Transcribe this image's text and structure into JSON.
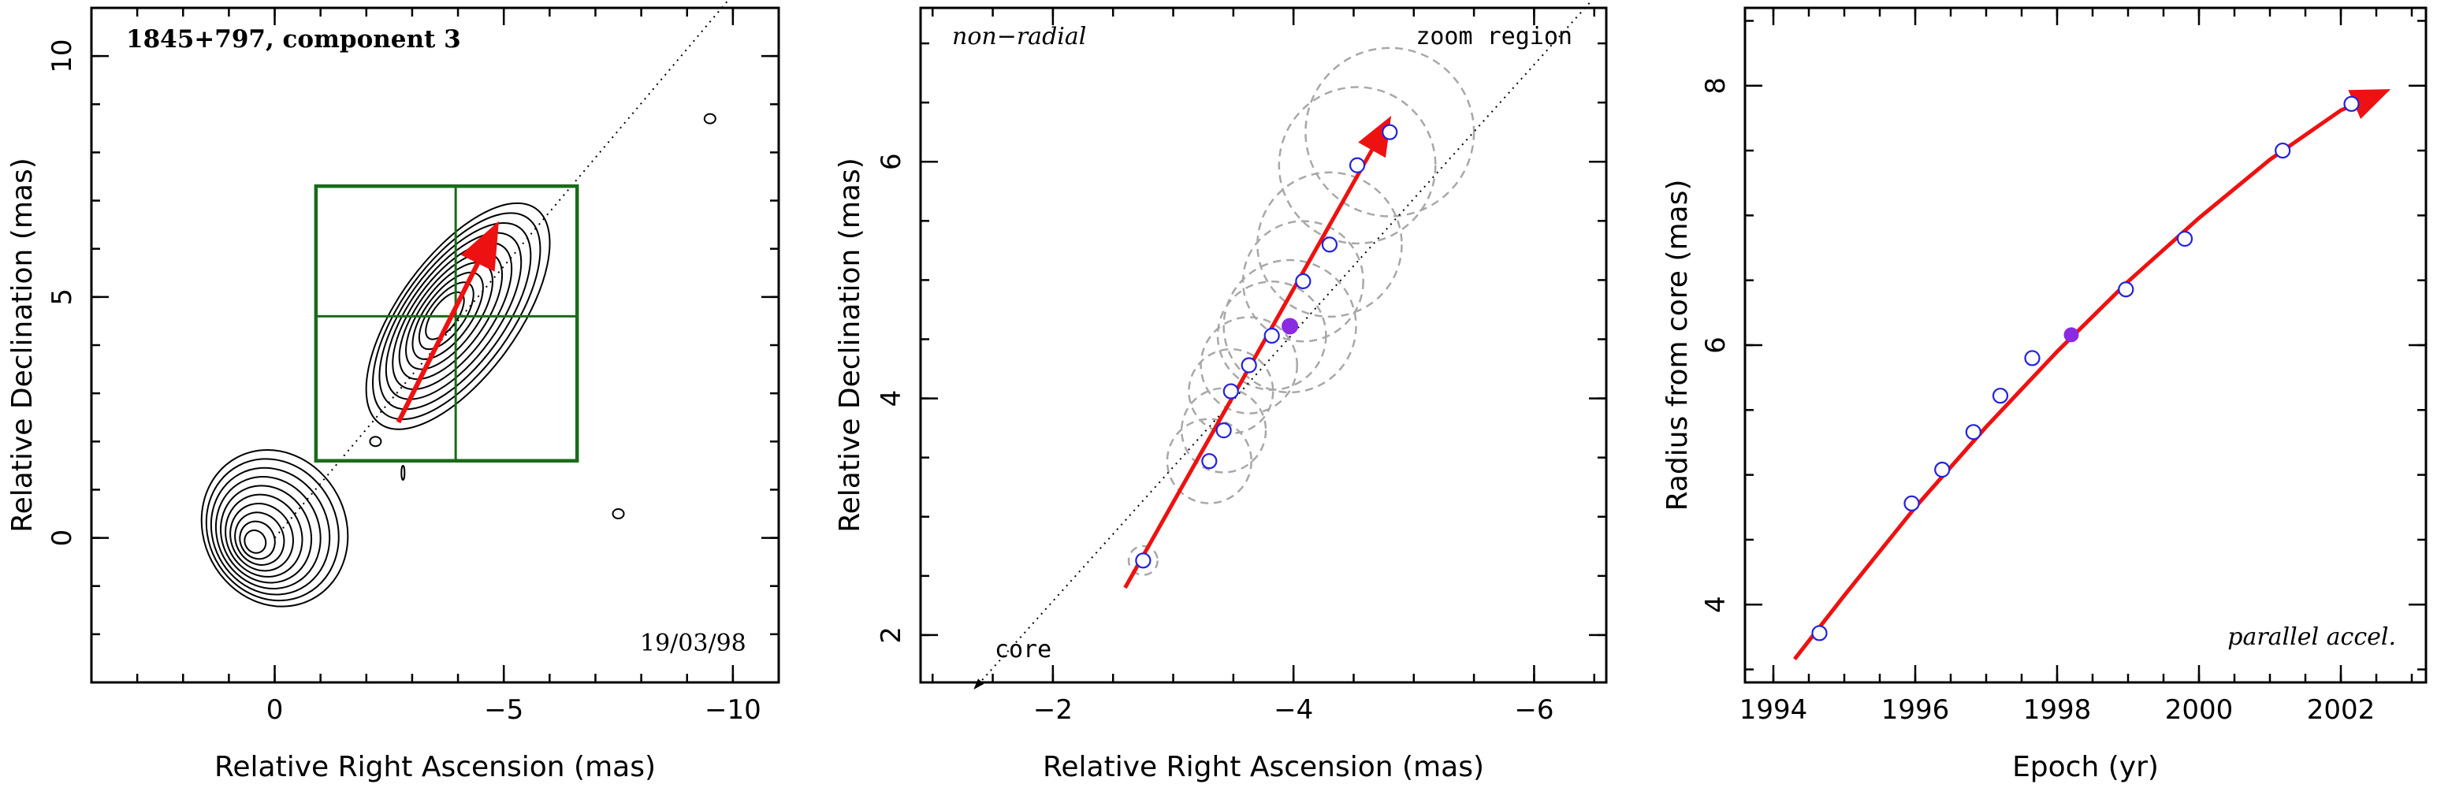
{
  "figure": {
    "colors": {
      "red": "#ee1111",
      "green": "#1a6b1a",
      "blue": "#2222dd",
      "purple": "#8a2be2",
      "gray": "#a8a8a8",
      "black": "#000000"
    }
  },
  "chart_data": [
    {
      "type": "scatter",
      "title": "1845+797, component 3",
      "xlabel": "Relative Right Ascension (mas)",
      "ylabel": "Relative Declination (mas)",
      "xlim": [
        4,
        -11
      ],
      "ylim": [
        -3,
        11
      ],
      "xticks": [
        0,
        -5,
        -10
      ],
      "xtick_labels": [
        "0",
        "−5",
        "−10"
      ],
      "yticks": [
        0,
        5,
        10
      ],
      "ytick_labels": [
        "0",
        "5",
        "10"
      ],
      "date_label": "19/03/98",
      "core_center": [
        0.0,
        0.2
      ],
      "component_center": [
        -4.0,
        4.6
      ],
      "zoom_box": {
        "x": [
          -0.9,
          -6.6
        ],
        "y": [
          1.6,
          7.3
        ]
      },
      "crosshair": {
        "x": -3.95,
        "y": 4.6
      },
      "diagonal_line": {
        "from": [
          0,
          0
        ],
        "to": [
          -10.2,
          11.5
        ]
      },
      "motion_arrow": {
        "from": [
          -2.7,
          2.4
        ],
        "to": [
          -4.8,
          6.4
        ]
      },
      "small_features": [
        {
          "x": -2.2,
          "y": 2.0
        },
        {
          "x": -7.5,
          "y": 0.5
        },
        {
          "x": -9.5,
          "y": 8.7
        },
        {
          "x": -2.8,
          "y": 1.35
        }
      ]
    },
    {
      "type": "scatter",
      "xlabel": "Relative Right Ascension (mas)",
      "ylabel": "Relative Declination (mas)",
      "xlim": [
        -0.9,
        -6.6
      ],
      "ylim": [
        1.6,
        7.3
      ],
      "xticks": [
        -2,
        -4,
        -6
      ],
      "xtick_labels": [
        "−2",
        "−4",
        "−6"
      ],
      "yticks": [
        2,
        4,
        6
      ],
      "ytick_labels": [
        "2",
        "4",
        "6"
      ],
      "top_left_label": "non−radial",
      "top_right_label": "zoom region",
      "core_label": "core",
      "points": [
        {
          "x": -2.75,
          "y": 2.63,
          "r": 0.12
        },
        {
          "x": -3.3,
          "y": 3.47,
          "r": 0.35
        },
        {
          "x": -3.42,
          "y": 3.73,
          "r": 0.35
        },
        {
          "x": -3.48,
          "y": 4.06,
          "r": 0.35
        },
        {
          "x": -3.63,
          "y": 4.28,
          "r": 0.4
        },
        {
          "x": -3.82,
          "y": 4.53,
          "r": 0.45
        },
        {
          "x": -4.08,
          "y": 4.99,
          "r": 0.5
        },
        {
          "x": -4.3,
          "y": 5.3,
          "r": 0.6
        },
        {
          "x": -4.53,
          "y": 5.97,
          "r": 0.65
        },
        {
          "x": -4.8,
          "y": 6.25,
          "r": 0.7
        }
      ],
      "highlight_point": {
        "x": -3.97,
        "y": 4.61,
        "r": 0.55
      },
      "diagonal_line": {
        "from": [
          -1.35,
          1.55
        ],
        "to": [
          -6.6,
          7.5
        ]
      },
      "motion_arrow": {
        "from": [
          -2.6,
          2.4
        ],
        "to": [
          -4.78,
          6.33
        ]
      }
    },
    {
      "type": "scatter",
      "xlabel": "Epoch (yr)",
      "ylabel": "Radius from core (mas)",
      "xlim": [
        1993.6,
        2003.2
      ],
      "ylim": [
        3.4,
        8.6
      ],
      "xticks": [
        1994,
        1996,
        1998,
        2000,
        2002
      ],
      "xtick_labels": [
        "1994",
        "1996",
        "1998",
        "2000",
        "2002"
      ],
      "yticks": [
        4,
        6,
        8
      ],
      "ytick_labels": [
        "4",
        "6",
        "8"
      ],
      "annotation": "parallel accel.",
      "x": [
        1994.65,
        1995.95,
        1996.38,
        1996.82,
        1997.2,
        1997.65,
        1998.97,
        1999.8,
        2001.18,
        2002.15
      ],
      "y": [
        3.78,
        4.78,
        5.04,
        5.33,
        5.61,
        5.9,
        6.43,
        6.82,
        7.5,
        7.86
      ],
      "highlight_point": {
        "x": 1998.2,
        "y": 6.08
      },
      "fit_curve": {
        "x": [
          1994.3,
          1995.0,
          1996.0,
          1997.0,
          1998.0,
          1999.0,
          2000.0,
          2001.0,
          2002.0,
          2002.6
        ],
        "y": [
          3.58,
          4.07,
          4.75,
          5.37,
          5.95,
          6.49,
          6.98,
          7.43,
          7.81,
          7.95
        ]
      }
    }
  ]
}
